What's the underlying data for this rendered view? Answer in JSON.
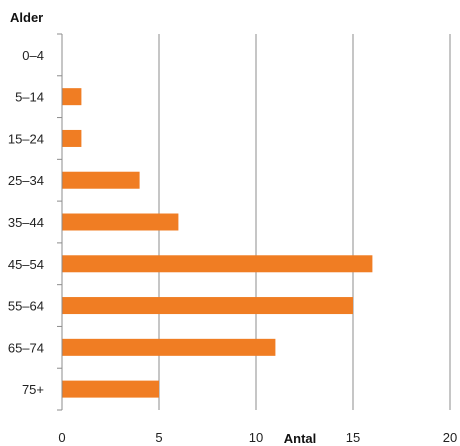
{
  "chart_data": {
    "type": "bar",
    "orientation": "horizontal",
    "categories": [
      "0–4",
      "5–14",
      "15–24",
      "25–34",
      "35–44",
      "45–54",
      "55–64",
      "65–74",
      "75+"
    ],
    "values": [
      0,
      1,
      1,
      4,
      6,
      16,
      15,
      11,
      5
    ],
    "xlabel": "Antal",
    "ylabel": "Alder",
    "xlim": [
      0,
      20
    ],
    "xticks": [
      0,
      5,
      10,
      15,
      20
    ],
    "grid": true,
    "bar_color": "#f07d23",
    "grid_color": "#8c8c8c"
  }
}
